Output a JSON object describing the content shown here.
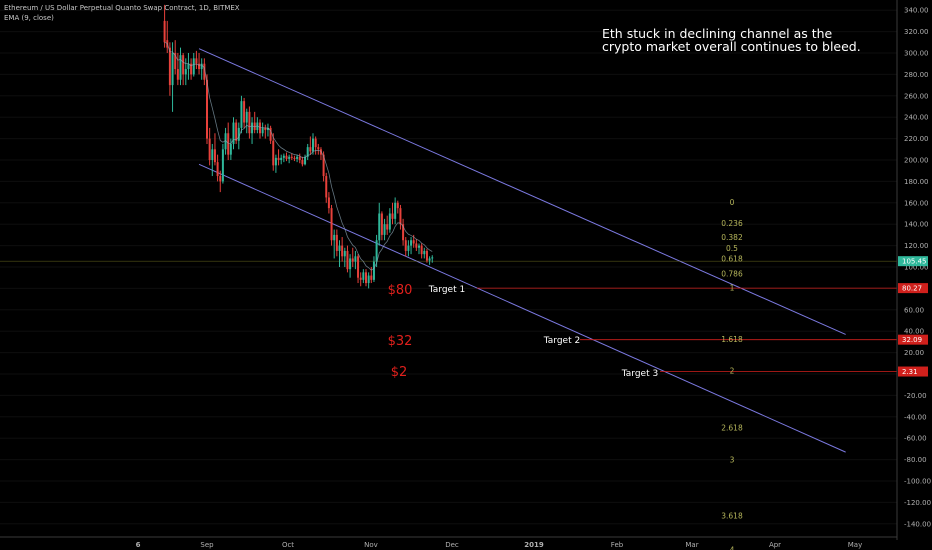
{
  "header": {
    "instrument": "Ethereum / US Dollar Perpetual Quanto Swap Contract, 1D, BITMEX",
    "indicator": "EMA (9, close)"
  },
  "annotation": {
    "line1": "Eth stuck in declining channel as the",
    "line2": "crypto market overall continues to bleed."
  },
  "colors": {
    "background": "#000000",
    "up_candle": "#2fb89b",
    "down_candle": "#e8413b",
    "channel": "#7b79e0",
    "fib": "#b6b65b",
    "target_line": "#d0201c",
    "ema": "#8fa8b8"
  },
  "chart_data": {
    "type": "candlestick",
    "y_axis": {
      "range": [
        -150,
        350
      ],
      "ticks": [
        "340.00",
        "320.00",
        "300.00",
        "280.00",
        "260.00",
        "240.00",
        "220.00",
        "200.00",
        "180.00",
        "160.00",
        "140.00",
        "120.00",
        "100.00",
        "80.00",
        "60.00",
        "40.00",
        "20.00",
        "0.00",
        "-20.00",
        "-40.00",
        "-60.00",
        "-80.00",
        "-100.00",
        "-120.00",
        "-140.00"
      ]
    },
    "x_axis": {
      "ticks": [
        "6",
        "Sep",
        "Oct",
        "Nov",
        "Dec",
        "2019",
        "Feb",
        "Mar",
        "Apr",
        "May"
      ],
      "bold": [
        "6",
        "2019"
      ]
    },
    "series": [
      {
        "ohlc": [
          [
            330,
            345,
            305,
            310
          ],
          [
            312,
            330,
            300,
            305
          ],
          [
            305,
            310,
            260,
            270
          ],
          [
            270,
            310,
            245,
            300
          ],
          [
            300,
            312,
            280,
            285
          ],
          [
            285,
            300,
            270,
            275
          ],
          [
            275,
            305,
            270,
            298
          ],
          [
            298,
            300,
            270,
            280
          ],
          [
            280,
            295,
            270,
            285
          ],
          [
            285,
            300,
            275,
            290
          ],
          [
            290,
            295,
            275,
            280
          ],
          [
            280,
            300,
            278,
            295
          ],
          [
            295,
            302,
            285,
            290
          ],
          [
            290,
            300,
            280,
            285
          ],
          [
            285,
            295,
            275,
            290
          ],
          [
            290,
            295,
            270,
            275
          ],
          [
            275,
            280,
            215,
            220
          ],
          [
            220,
            230,
            195,
            200
          ],
          [
            200,
            215,
            185,
            210
          ],
          [
            210,
            225,
            195,
            198
          ],
          [
            198,
            205,
            180,
            185
          ],
          [
            185,
            190,
            170,
            180
          ],
          [
            180,
            215,
            178,
            210
          ],
          [
            210,
            230,
            205,
            225
          ],
          [
            225,
            235,
            200,
            205
          ],
          [
            205,
            220,
            200,
            215
          ],
          [
            215,
            240,
            210,
            235
          ],
          [
            235,
            238,
            215,
            218
          ],
          [
            218,
            235,
            210,
            230
          ],
          [
            230,
            260,
            225,
            255
          ],
          [
            255,
            258,
            230,
            235
          ],
          [
            235,
            248,
            225,
            245
          ],
          [
            245,
            250,
            220,
            225
          ],
          [
            225,
            240,
            215,
            235
          ],
          [
            235,
            245,
            225,
            228
          ],
          [
            228,
            240,
            225,
            235
          ],
          [
            235,
            238,
            220,
            225
          ],
          [
            225,
            235,
            222,
            230
          ],
          [
            230,
            233,
            220,
            228
          ],
          [
            228,
            234,
            222,
            230
          ],
          [
            230,
            232,
            215,
            218
          ],
          [
            218,
            225,
            190,
            195
          ],
          [
            195,
            205,
            188,
            202
          ],
          [
            202,
            210,
            195,
            200
          ],
          [
            200,
            205,
            196,
            202
          ],
          [
            202,
            206,
            198,
            204
          ],
          [
            204,
            207,
            199,
            201
          ],
          [
            201,
            205,
            197,
            203
          ],
          [
            203,
            206,
            200,
            202
          ],
          [
            202,
            204,
            199,
            201
          ],
          [
            201,
            205,
            198,
            203
          ],
          [
            203,
            206,
            197,
            200
          ],
          [
            200,
            203,
            194,
            196
          ],
          [
            196,
            205,
            195,
            203
          ],
          [
            203,
            215,
            200,
            212
          ],
          [
            212,
            222,
            205,
            208
          ],
          [
            208,
            225,
            205,
            220
          ],
          [
            220,
            222,
            205,
            212
          ],
          [
            212,
            215,
            205,
            210
          ],
          [
            210,
            212,
            200,
            205
          ],
          [
            205,
            208,
            180,
            185
          ],
          [
            185,
            188,
            160,
            165
          ],
          [
            165,
            170,
            150,
            155
          ],
          [
            155,
            158,
            120,
            125
          ],
          [
            125,
            135,
            108,
            130
          ],
          [
            130,
            135,
            110,
            115
          ],
          [
            115,
            125,
            100,
            120
          ],
          [
            120,
            128,
            105,
            110
          ],
          [
            110,
            118,
            100,
            115
          ],
          [
            115,
            120,
            95,
            98
          ],
          [
            98,
            112,
            90,
            108
          ],
          [
            108,
            118,
            100,
            105
          ],
          [
            105,
            115,
            98,
            110
          ],
          [
            110,
            112,
            85,
            90
          ],
          [
            90,
            95,
            82,
            88
          ],
          [
            88,
            98,
            85,
            95
          ],
          [
            95,
            98,
            82,
            85
          ],
          [
            85,
            95,
            80,
            92
          ],
          [
            92,
            100,
            85,
            88
          ],
          [
            88,
            110,
            86,
            105
          ],
          [
            105,
            130,
            100,
            125
          ],
          [
            125,
            160,
            120,
            150
          ],
          [
            150,
            152,
            125,
            130
          ],
          [
            130,
            145,
            125,
            140
          ],
          [
            140,
            148,
            130,
            135
          ],
          [
            135,
            155,
            132,
            150
          ],
          [
            150,
            160,
            140,
            145
          ],
          [
            145,
            165,
            140,
            160
          ],
          [
            160,
            162,
            150,
            155
          ],
          [
            155,
            158,
            135,
            140
          ],
          [
            140,
            145,
            120,
            125
          ],
          [
            125,
            128,
            110,
            115
          ],
          [
            115,
            125,
            110,
            120
          ],
          [
            120,
            128,
            112,
            125
          ],
          [
            125,
            130,
            118,
            122
          ],
          [
            122,
            126,
            115,
            118
          ],
          [
            118,
            122,
            112,
            120
          ],
          [
            120,
            122,
            108,
            112
          ],
          [
            112,
            118,
            108,
            115
          ],
          [
            115,
            117,
            104,
            106
          ],
          [
            106,
            110,
            102,
            108
          ],
          [
            108,
            111,
            104,
            109
          ]
        ]
      }
    ],
    "channel_lines": [
      {
        "from": [
          "2018-08-29",
          304
        ],
        "to": [
          "2019-04-30",
          37
        ]
      },
      {
        "from": [
          "2018-08-29",
          196
        ],
        "to": [
          "2019-04-30",
          -73
        ]
      }
    ],
    "fib_levels": [
      {
        "label": "0",
        "price": 160
      },
      {
        "label": "0.236",
        "price": 140
      },
      {
        "label": "0.382",
        "price": 127
      },
      {
        "label": "0.5",
        "price": 117
      },
      {
        "label": "0.618",
        "price": 107
      },
      {
        "label": "0.786",
        "price": 93
      },
      {
        "label": "1",
        "price": 80
      },
      {
        "label": "1.618",
        "price": 32
      },
      {
        "label": "2",
        "price": 2.3
      },
      {
        "label": "2.618",
        "price": -51
      },
      {
        "label": "3",
        "price": -81
      },
      {
        "label": "3.618",
        "price": -133
      },
      {
        "label": "4",
        "price": -165
      }
    ],
    "targets": [
      {
        "label": "Target 1",
        "price": 80.27,
        "price_label": "$80",
        "badge": "80.27"
      },
      {
        "label": "Target 2",
        "price": 32.09,
        "price_label": "$32",
        "badge": "32.09"
      },
      {
        "label": "Target 3",
        "price": 2.31,
        "price_label": "$2",
        "badge": "2.31"
      }
    ],
    "last_price": {
      "price": 105.45,
      "badge": "105.45"
    }
  }
}
